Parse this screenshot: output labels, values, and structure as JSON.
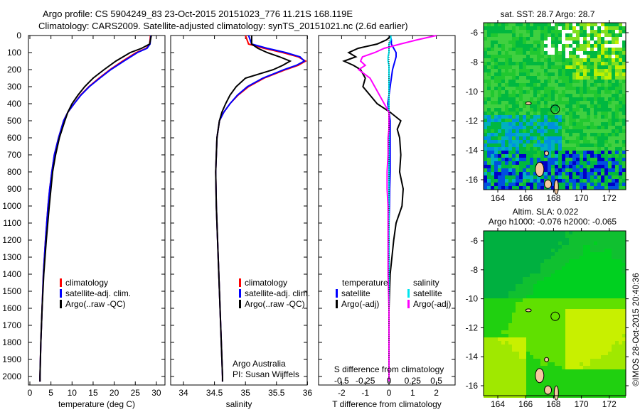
{
  "title": {
    "line1": "Argo profile: CS 5904249_83 23-Oct-2015 20151023_776 11.21S 168.119E",
    "line2": "Climatology: CARS2009. Satellite-adjusted climatology: synTS_20151021.nc (2.6d earlier)"
  },
  "credit": "©IMOS 28-Oct-2015 20:40:36",
  "attribution": {
    "line1": "Argo Australia",
    "line2": "PI: Susan Wijffels"
  },
  "colors": {
    "climatology": "#ff0000",
    "satellite": "#0000ff",
    "argo": "#000000",
    "sal_satellite": "#00e5ee",
    "sal_argo": "#ff00ff"
  },
  "chart_data": [
    {
      "type": "line",
      "name": "temperature-profile",
      "xlabel": "temperature (deg C)",
      "ylabel": "",
      "xlim": [
        -0.3,
        32
      ],
      "ylim": [
        2050,
        0
      ],
      "xticks": [
        "0",
        "5",
        "10",
        "15",
        "20",
        "25",
        "30"
      ],
      "yticks": [
        "0",
        "100",
        "200",
        "300",
        "400",
        "500",
        "600",
        "700",
        "800",
        "900",
        "1000",
        "1100",
        "1200",
        "1300",
        "1400",
        "1500",
        "1600",
        "1700",
        "1800",
        "1900",
        "2000"
      ],
      "legend": [
        "climatology",
        "satellite-adj. clim.",
        "Argo(..raw -QC)"
      ],
      "depth": [
        0,
        50,
        75,
        100,
        150,
        200,
        250,
        300,
        350,
        400,
        450,
        500,
        600,
        700,
        800,
        900,
        1000,
        1200,
        1400,
        1600,
        1800,
        2000,
        2030
      ],
      "series": [
        {
          "name": "climatology",
          "values": [
            28.6,
            28.4,
            27.6,
            25.2,
            22.0,
            19.0,
            16.4,
            14.0,
            12.0,
            10.5,
            9.0,
            8.0,
            6.8,
            5.8,
            5.2,
            4.7,
            4.3,
            3.7,
            3.2,
            2.9,
            2.6,
            2.4,
            2.4
          ]
        },
        {
          "name": "satellite-adj. clim.",
          "values": [
            28.7,
            28.5,
            27.8,
            25.5,
            22.3,
            19.2,
            16.6,
            14.1,
            12.1,
            10.5,
            9.0,
            8.0,
            6.8,
            5.8,
            5.2,
            4.7,
            4.3,
            3.7,
            3.2,
            2.9,
            2.6,
            2.4,
            2.4
          ]
        },
        {
          "name": "Argo(..raw -QC)",
          "values": [
            28.8,
            28.4,
            26.5,
            23.8,
            20.4,
            17.6,
            15.0,
            13.0,
            11.4,
            10.0,
            9.0,
            8.3,
            7.0,
            6.1,
            5.4,
            5.0,
            4.6,
            3.9,
            3.3,
            2.9,
            2.6,
            2.4,
            2.4
          ]
        }
      ]
    },
    {
      "type": "line",
      "name": "salinity-profile",
      "xlabel": "salinity",
      "xlim": [
        33.8,
        36.0
      ],
      "ylim": [
        2050,
        0
      ],
      "xticks": [
        "34",
        "34.5",
        "35",
        "35.5",
        "36"
      ],
      "legend": [
        "climatology",
        "satellite-adj. clim.",
        "Argo(..raw -QC)"
      ],
      "depth": [
        0,
        50,
        75,
        100,
        125,
        150,
        175,
        200,
        250,
        300,
        350,
        400,
        450,
        500,
        600,
        800,
        1000,
        1500,
        2000,
        2030
      ],
      "series": [
        {
          "name": "climatology",
          "values": [
            35.0,
            35.05,
            35.3,
            35.6,
            35.85,
            35.97,
            35.85,
            35.65,
            35.3,
            35.05,
            34.88,
            34.75,
            34.65,
            34.58,
            34.54,
            34.52,
            34.53,
            34.58,
            34.63,
            34.63
          ]
        },
        {
          "name": "satellite-adj. clim.",
          "values": [
            35.05,
            35.1,
            35.35,
            35.65,
            35.88,
            35.95,
            35.82,
            35.62,
            35.28,
            35.03,
            34.87,
            34.75,
            34.65,
            34.58,
            34.54,
            34.52,
            34.53,
            34.58,
            34.63,
            34.63
          ]
        },
        {
          "name": "Argo(..raw -QC)",
          "values": [
            35.1,
            35.1,
            35.2,
            35.35,
            35.55,
            35.72,
            35.6,
            35.45,
            35.0,
            34.85,
            34.75,
            34.68,
            34.62,
            34.58,
            34.54,
            34.52,
            34.53,
            34.58,
            34.63,
            34.63
          ]
        }
      ]
    },
    {
      "type": "line",
      "name": "difference-profile",
      "xlabel": "T difference from climatology",
      "x2label": "S difference from climatology",
      "xlim": [
        -3,
        2.8
      ],
      "ylim": [
        2050,
        0
      ],
      "xticks": [
        "-2",
        "-1",
        "0",
        "1",
        "2"
      ],
      "x2ticks": [
        "-0.5",
        "-0.25",
        "0",
        "0.25",
        "0.5"
      ],
      "legend_titles": [
        "temperature",
        "salinity"
      ],
      "legend": [
        "satellite",
        "Argo(-adj)",
        "satellite",
        "Argo(-adj)"
      ],
      "depth": [
        0,
        25,
        50,
        75,
        100,
        125,
        150,
        175,
        200,
        250,
        300,
        350,
        400,
        450,
        500,
        550,
        600,
        700,
        800,
        900,
        1000,
        1100,
        1200,
        1400,
        1600,
        2000,
        2030
      ],
      "series": [
        {
          "name": "T satellite",
          "values": [
            0.05,
            0.1,
            0.1,
            0.2,
            0.3,
            0.3,
            0.25,
            0.2,
            0.15,
            0.1,
            0.05,
            0.0,
            -0.05,
            0,
            0.05,
            0.05,
            0.05,
            0.05,
            0.05,
            0.03,
            0.02,
            0,
            0,
            0,
            0,
            0,
            0
          ]
        },
        {
          "name": "T Argo(-adj)",
          "values": [
            0.1,
            -0.1,
            -0.5,
            -1.3,
            -1.7,
            -1.4,
            -1.9,
            -1.5,
            -1.2,
            -1.0,
            -1.1,
            -0.8,
            -0.5,
            0.05,
            0.5,
            0.35,
            0.45,
            0.5,
            0.45,
            0.6,
            0.55,
            0.3,
            0.2,
            0.05,
            0.0,
            0.0,
            0.0
          ]
        },
        {
          "name": "S satellite",
          "values": [
            0.02,
            0.02,
            0.0,
            0.0,
            0.0,
            -0.01,
            -0.01,
            0,
            0,
            0,
            0,
            0,
            0,
            0,
            0,
            0,
            0,
            0,
            0,
            0,
            0,
            0,
            0,
            0,
            0,
            0,
            0
          ]
        },
        {
          "name": "S Argo(-adj)",
          "values": [
            0.5,
            0.3,
            0.12,
            -0.05,
            -0.15,
            -0.28,
            -0.3,
            -0.25,
            -0.32,
            -0.2,
            -0.15,
            -0.1,
            -0.05,
            0,
            0,
            0,
            -0.01,
            -0.01,
            -0.02,
            -0.02,
            -0.01,
            -0.01,
            -0.01,
            -0.01,
            0,
            0,
            0
          ]
        }
      ]
    },
    {
      "type": "heatmap",
      "name": "sst-map",
      "title": "sat. SST: 28.7 Argo: 28.7",
      "xlim": [
        163,
        173.3
      ],
      "ylim": [
        -17.2,
        -5.3
      ],
      "xticks": [
        "164",
        "166",
        "168",
        "170",
        "172"
      ],
      "yticks": [
        "-6",
        "-8",
        "-10",
        "-12",
        "-14",
        "-16"
      ],
      "marker": {
        "lon": 168.119,
        "lat": -11.21
      }
    },
    {
      "type": "heatmap",
      "name": "sla-map",
      "title": "Altim. SLA: 0.022",
      "subtitle": "Argo h1000: -0.076 h2000: -0.065",
      "xlim": [
        163,
        173.3
      ],
      "ylim": [
        -17.2,
        -5.3
      ],
      "xticks": [
        "164",
        "166",
        "168",
        "170",
        "172"
      ],
      "yticks": [
        "-6",
        "-8",
        "-10",
        "-12",
        "-14",
        "-16"
      ],
      "marker": {
        "lon": 168.119,
        "lat": -11.21
      }
    }
  ]
}
